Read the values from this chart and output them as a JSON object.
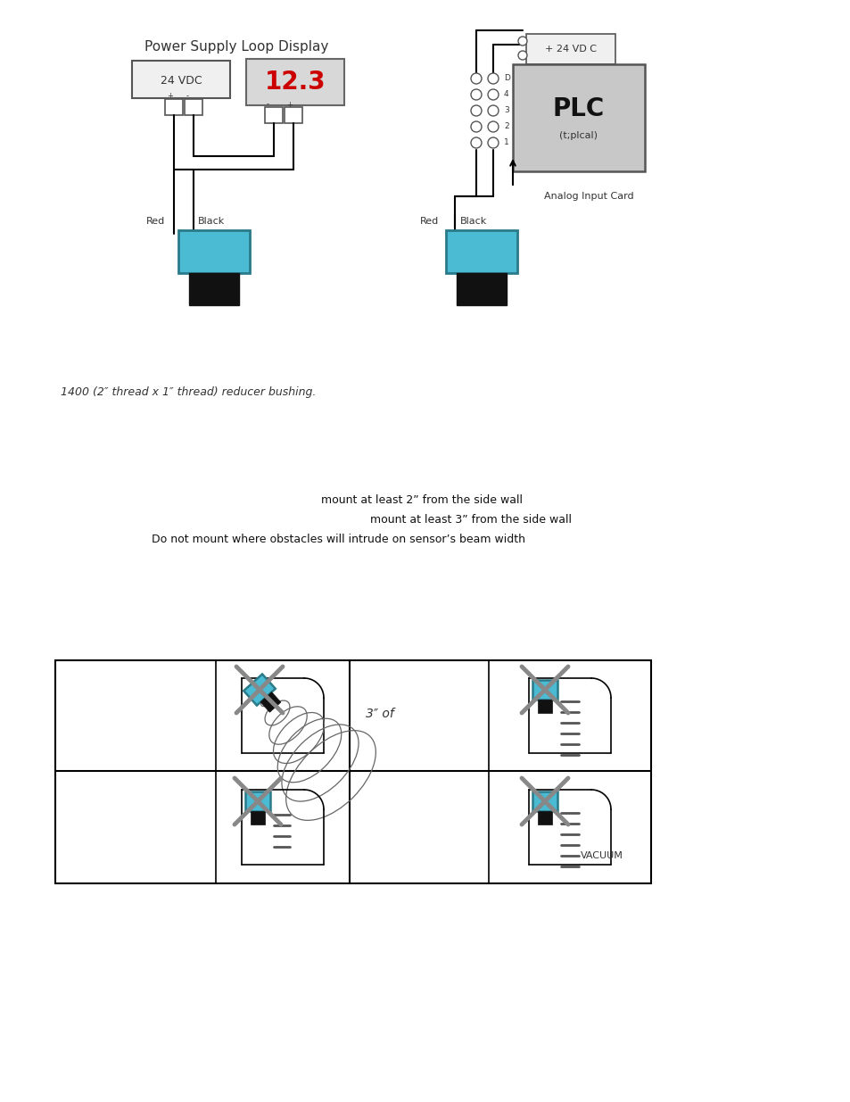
{
  "bg_color": "#ffffff",
  "page_width": 9.54,
  "page_height": 12.35,
  "top_diagram": {
    "left_title": "Power Supply Loop Display",
    "left_label_24vdc": "24 VDC",
    "left_display_value": "12.3",
    "left_red_label": "Red",
    "left_black_label": "Black",
    "right_label_24vdc": "+ 24 VD C",
    "right_plc_label": "PLC",
    "right_plc_sub": "(t;plcal)",
    "right_analog_label": "Analog Input Card",
    "right_red_label": "Red",
    "right_black_label": "Black"
  },
  "text_italic": "1400 (2″ thread x 1″ thread) reducer bushing.",
  "bullet_lines": [
    "mount at least 2” from the side wall",
    "mount at least 3” from the side wall",
    "Do not mount where obstacles will intrude on sensor’s beam width"
  ],
  "grid_label": "3″ of",
  "vacuum_label": "VACUUM"
}
